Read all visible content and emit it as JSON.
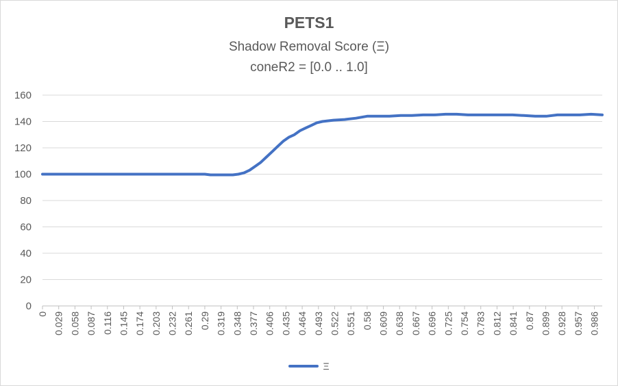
{
  "chart_data": {
    "type": "line",
    "title": "PETS1",
    "subtitle": "Shadow Removal Score (Ξ)",
    "subtitle2": "coneR2 = [0.0 .. 1.0]",
    "xlabel": "",
    "ylabel": "",
    "ylim": [
      0,
      160
    ],
    "yticks": [
      0,
      20,
      40,
      60,
      80,
      100,
      120,
      140,
      160
    ],
    "grid": true,
    "legend_position": "bottom",
    "series_color": "#4472c4",
    "categories": [
      "0",
      "0.029",
      "0.058",
      "0.087",
      "0.116",
      "0.145",
      "0.174",
      "0.203",
      "0.232",
      "0.261",
      "0.29",
      "0.319",
      "0.348",
      "0.377",
      "0.406",
      "0.435",
      "0.464",
      "0.493",
      "0.522",
      "0.551",
      "0.58",
      "0.609",
      "0.638",
      "0.667",
      "0.696",
      "0.725",
      "0.754",
      "0.783",
      "0.812",
      "0.841",
      "0.87",
      "0.899",
      "0.928",
      "0.957",
      "0.986"
    ],
    "series": [
      {
        "name": "Ξ",
        "x": [
          0,
          0.05,
          0.1,
          0.15,
          0.2,
          0.25,
          0.29,
          0.3,
          0.32,
          0.34,
          0.35,
          0.36,
          0.37,
          0.38,
          0.39,
          0.4,
          0.41,
          0.42,
          0.43,
          0.44,
          0.45,
          0.46,
          0.47,
          0.48,
          0.49,
          0.5,
          0.52,
          0.54,
          0.56,
          0.58,
          0.6,
          0.62,
          0.64,
          0.66,
          0.68,
          0.7,
          0.72,
          0.74,
          0.76,
          0.78,
          0.8,
          0.82,
          0.84,
          0.86,
          0.88,
          0.9,
          0.92,
          0.94,
          0.96,
          0.98,
          1.0
        ],
        "y": [
          100,
          100,
          100,
          100,
          100,
          100,
          100,
          99.5,
          99.5,
          99.5,
          100,
          101,
          103,
          106,
          109,
          113,
          117,
          121,
          125,
          128,
          130,
          133,
          135,
          137,
          139,
          140,
          141,
          141.5,
          142.5,
          144,
          144,
          144,
          144.5,
          144.5,
          145,
          145,
          145.5,
          145.5,
          145,
          145,
          145,
          145,
          145,
          144.5,
          144,
          144,
          145,
          145,
          145,
          145.5,
          145
        ]
      }
    ]
  }
}
